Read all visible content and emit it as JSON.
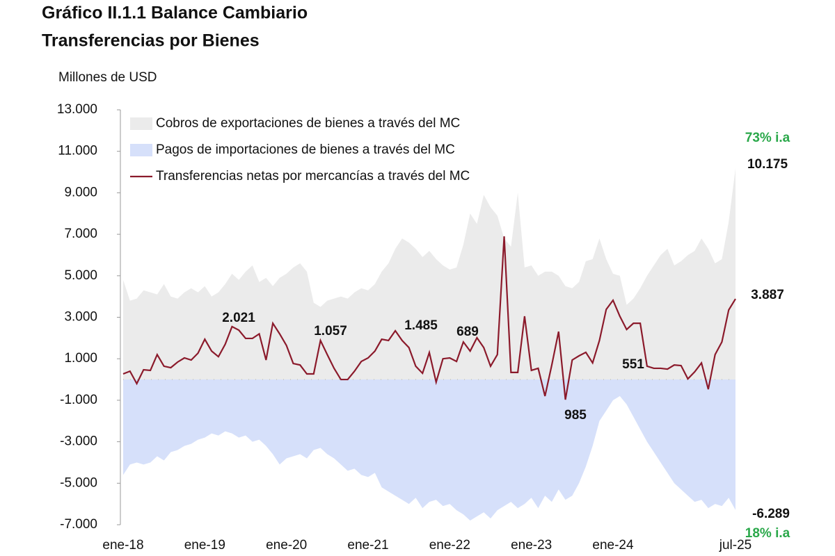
{
  "chart_data": {
    "type": "area-line",
    "title": "Gráfico II.1.1 Balance Cambiario",
    "subtitle": "Transferencias por Bienes",
    "y_label": "Millones de USD",
    "categories": [
      "ene-18",
      null,
      null,
      null,
      null,
      null,
      null,
      null,
      null,
      null,
      null,
      null,
      "ene-19",
      null,
      null,
      null,
      null,
      null,
      null,
      null,
      null,
      null,
      null,
      null,
      "ene-20",
      null,
      null,
      null,
      null,
      null,
      null,
      null,
      null,
      null,
      null,
      null,
      "ene-21",
      null,
      null,
      null,
      null,
      null,
      null,
      null,
      null,
      null,
      null,
      null,
      "ene-22",
      null,
      null,
      null,
      null,
      null,
      null,
      null,
      null,
      null,
      null,
      null,
      "ene-23",
      null,
      null,
      null,
      null,
      null,
      null,
      null,
      null,
      null,
      null,
      null,
      "ene-24",
      null,
      null,
      null,
      null,
      null,
      null,
      null,
      null,
      null,
      null,
      null,
      null,
      null,
      null,
      null,
      null,
      null,
      "jul-25"
    ],
    "series": [
      {
        "name": "Cobros de exportaciones de bienes a través del MC",
        "kind": "area",
        "color": "#ebebeb",
        "values": [
          4800,
          3800,
          3900,
          4300,
          4200,
          4100,
          4600,
          4000,
          3900,
          4200,
          4400,
          4200,
          4500,
          4000,
          4200,
          4600,
          5100,
          4800,
          5200,
          5500,
          4700,
          4900,
          4500,
          4900,
          5100,
          5400,
          5600,
          5200,
          3700,
          3500,
          3800,
          3900,
          4000,
          3900,
          4200,
          4400,
          4300,
          4600,
          5200,
          5600,
          6300,
          6800,
          6600,
          6300,
          5900,
          6200,
          5800,
          5500,
          5300,
          5400,
          6500,
          8000,
          7500,
          8900,
          8300,
          7900,
          6800,
          6400,
          9000,
          5400,
          5500,
          5000,
          5200,
          5200,
          5000,
          4500,
          4400,
          4700,
          5700,
          5800,
          6800,
          5800,
          5100,
          5000,
          3600,
          3900,
          4400,
          5000,
          5500,
          6000,
          6300,
          5500,
          5700,
          6000,
          6200,
          6800,
          6300,
          5600,
          5800,
          7600,
          10175
        ]
      },
      {
        "name": "Pagos de importaciones de bienes a través del MC",
        "kind": "area",
        "color": "#d6e0fa",
        "values": [
          -4600,
          -4100,
          -4000,
          -4100,
          -4000,
          -3700,
          -3900,
          -3500,
          -3400,
          -3200,
          -3100,
          -2900,
          -2800,
          -2600,
          -2700,
          -2500,
          -2600,
          -2800,
          -2700,
          -3000,
          -2900,
          -3200,
          -3600,
          -4100,
          -3800,
          -3700,
          -3600,
          -3800,
          -3400,
          -3300,
          -3600,
          -3800,
          -4100,
          -4400,
          -4300,
          -4600,
          -4700,
          -4500,
          -5200,
          -5400,
          -5600,
          -5800,
          -6000,
          -5700,
          -6200,
          -5900,
          -5800,
          -6100,
          -6000,
          -6300,
          -6500,
          -6800,
          -6600,
          -6400,
          -6700,
          -6300,
          -6100,
          -5900,
          -6200,
          -6000,
          -5700,
          -6200,
          -5600,
          -5900,
          -5300,
          -5800,
          -5600,
          -5000,
          -4200,
          -3200,
          -2000,
          -1500,
          -1000,
          -800,
          -1200,
          -1800,
          -2400,
          -3000,
          -3500,
          -4000,
          -4500,
          -5000,
          -5300,
          -5600,
          -5900,
          -5800,
          -6200,
          -6000,
          -6100,
          -5700,
          -6289
        ]
      },
      {
        "name": "Transferencias netas por mercancías a través del MC",
        "kind": "line",
        "color": "#8b1a2b",
        "values": [
          270,
          400,
          -200,
          470,
          440,
          1200,
          640,
          570,
          840,
          1040,
          940,
          1270,
          1940,
          1370,
          1100,
          1700,
          2550,
          2380,
          1980,
          1980,
          2200,
          940,
          2710,
          2200,
          1640,
          770,
          700,
          270,
          270,
          1880,
          1200,
          540,
          0,
          0,
          400,
          870,
          1040,
          1370,
          1940,
          1880,
          2350,
          1880,
          1540,
          640,
          300,
          1300,
          -130,
          1000,
          1040,
          870,
          1810,
          1370,
          2010,
          1540,
          640,
          1200,
          6900,
          340,
          340,
          3050,
          440,
          540,
          -800,
          700,
          2310,
          -970,
          940,
          1140,
          1310,
          800,
          1880,
          3380,
          3820,
          3050,
          2410,
          2710,
          2710,
          640,
          540,
          540,
          500,
          700,
          670,
          30,
          370,
          800,
          -470,
          1200,
          1810,
          3350,
          3887
        ]
      }
    ],
    "ylim": [
      -7000,
      13000
    ],
    "yticks": [
      {
        "value": -7000,
        "label": "-7.000"
      },
      {
        "value": -5000,
        "label": "-5.000"
      },
      {
        "value": -3000,
        "label": "-3.000"
      },
      {
        "value": -1000,
        "label": "-1.000"
      },
      {
        "value": 1000,
        "label": "1.000"
      },
      {
        "value": 3000,
        "label": "3.000"
      },
      {
        "value": 5000,
        "label": "5.000"
      },
      {
        "value": 7000,
        "label": "7.000"
      },
      {
        "value": 9000,
        "label": "9.000"
      },
      {
        "value": 11000,
        "label": "11.000"
      },
      {
        "value": 13000,
        "label": "13.000"
      }
    ],
    "legend": "top-left",
    "annotations": [
      {
        "text": "2.021",
        "color": "#111111"
      },
      {
        "text": "1.057",
        "color": "#111111"
      },
      {
        "text": "1.485",
        "color": "#111111"
      },
      {
        "text": "689",
        "color": "#111111"
      },
      {
        "text": "985",
        "color": "#111111"
      },
      {
        "text": "551",
        "color": "#111111"
      },
      {
        "text": "3.887",
        "color": "#111111"
      },
      {
        "text": "10.175",
        "color": "#111111"
      },
      {
        "text": "-6.289",
        "color": "#111111"
      },
      {
        "text": "73% i.a",
        "color": "#2aa84a"
      },
      {
        "text": "18% i.a",
        "color": "#2aa84a"
      }
    ]
  }
}
